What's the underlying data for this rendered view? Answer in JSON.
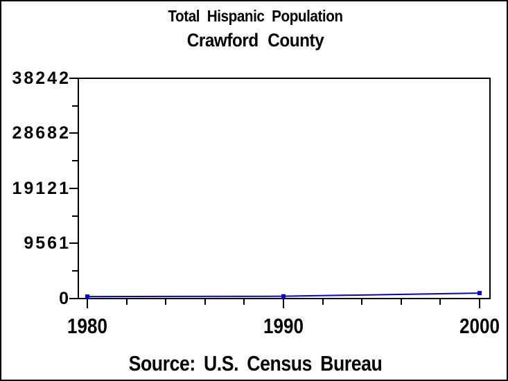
{
  "window": {
    "background_color": "#ffffff",
    "border_color": "#000000"
  },
  "chart_data": {
    "type": "line",
    "title": "Total Hispanic Population",
    "subtitle": "Crawford County",
    "source": "Source: U.S. Census Bureau",
    "xlabel": "",
    "ylabel": "",
    "x": [
      1980,
      1990,
      2000
    ],
    "series": [
      {
        "name": "Total Hispanic Population",
        "values": [
          350,
          400,
          950
        ]
      }
    ],
    "xlim": [
      1980,
      2000
    ],
    "ylim": [
      0,
      38242
    ],
    "yticks": [
      0,
      9561,
      19121,
      28682,
      38242
    ],
    "ytick_labels": [
      "0",
      "9561",
      "19121",
      "28682",
      "38242"
    ],
    "y_minor_ticks": [
      4781,
      14341,
      23902,
      33462
    ],
    "xticks": [
      1980,
      1990,
      2000
    ],
    "xtick_labels": [
      "1980",
      "1990",
      "2000"
    ],
    "x_minor_tick_step": 2,
    "grid": false,
    "legend": false,
    "line_color": "#0000e0",
    "marker": "square",
    "marker_size": 6,
    "axis_color": "#000000",
    "text_color": "#000000"
  }
}
